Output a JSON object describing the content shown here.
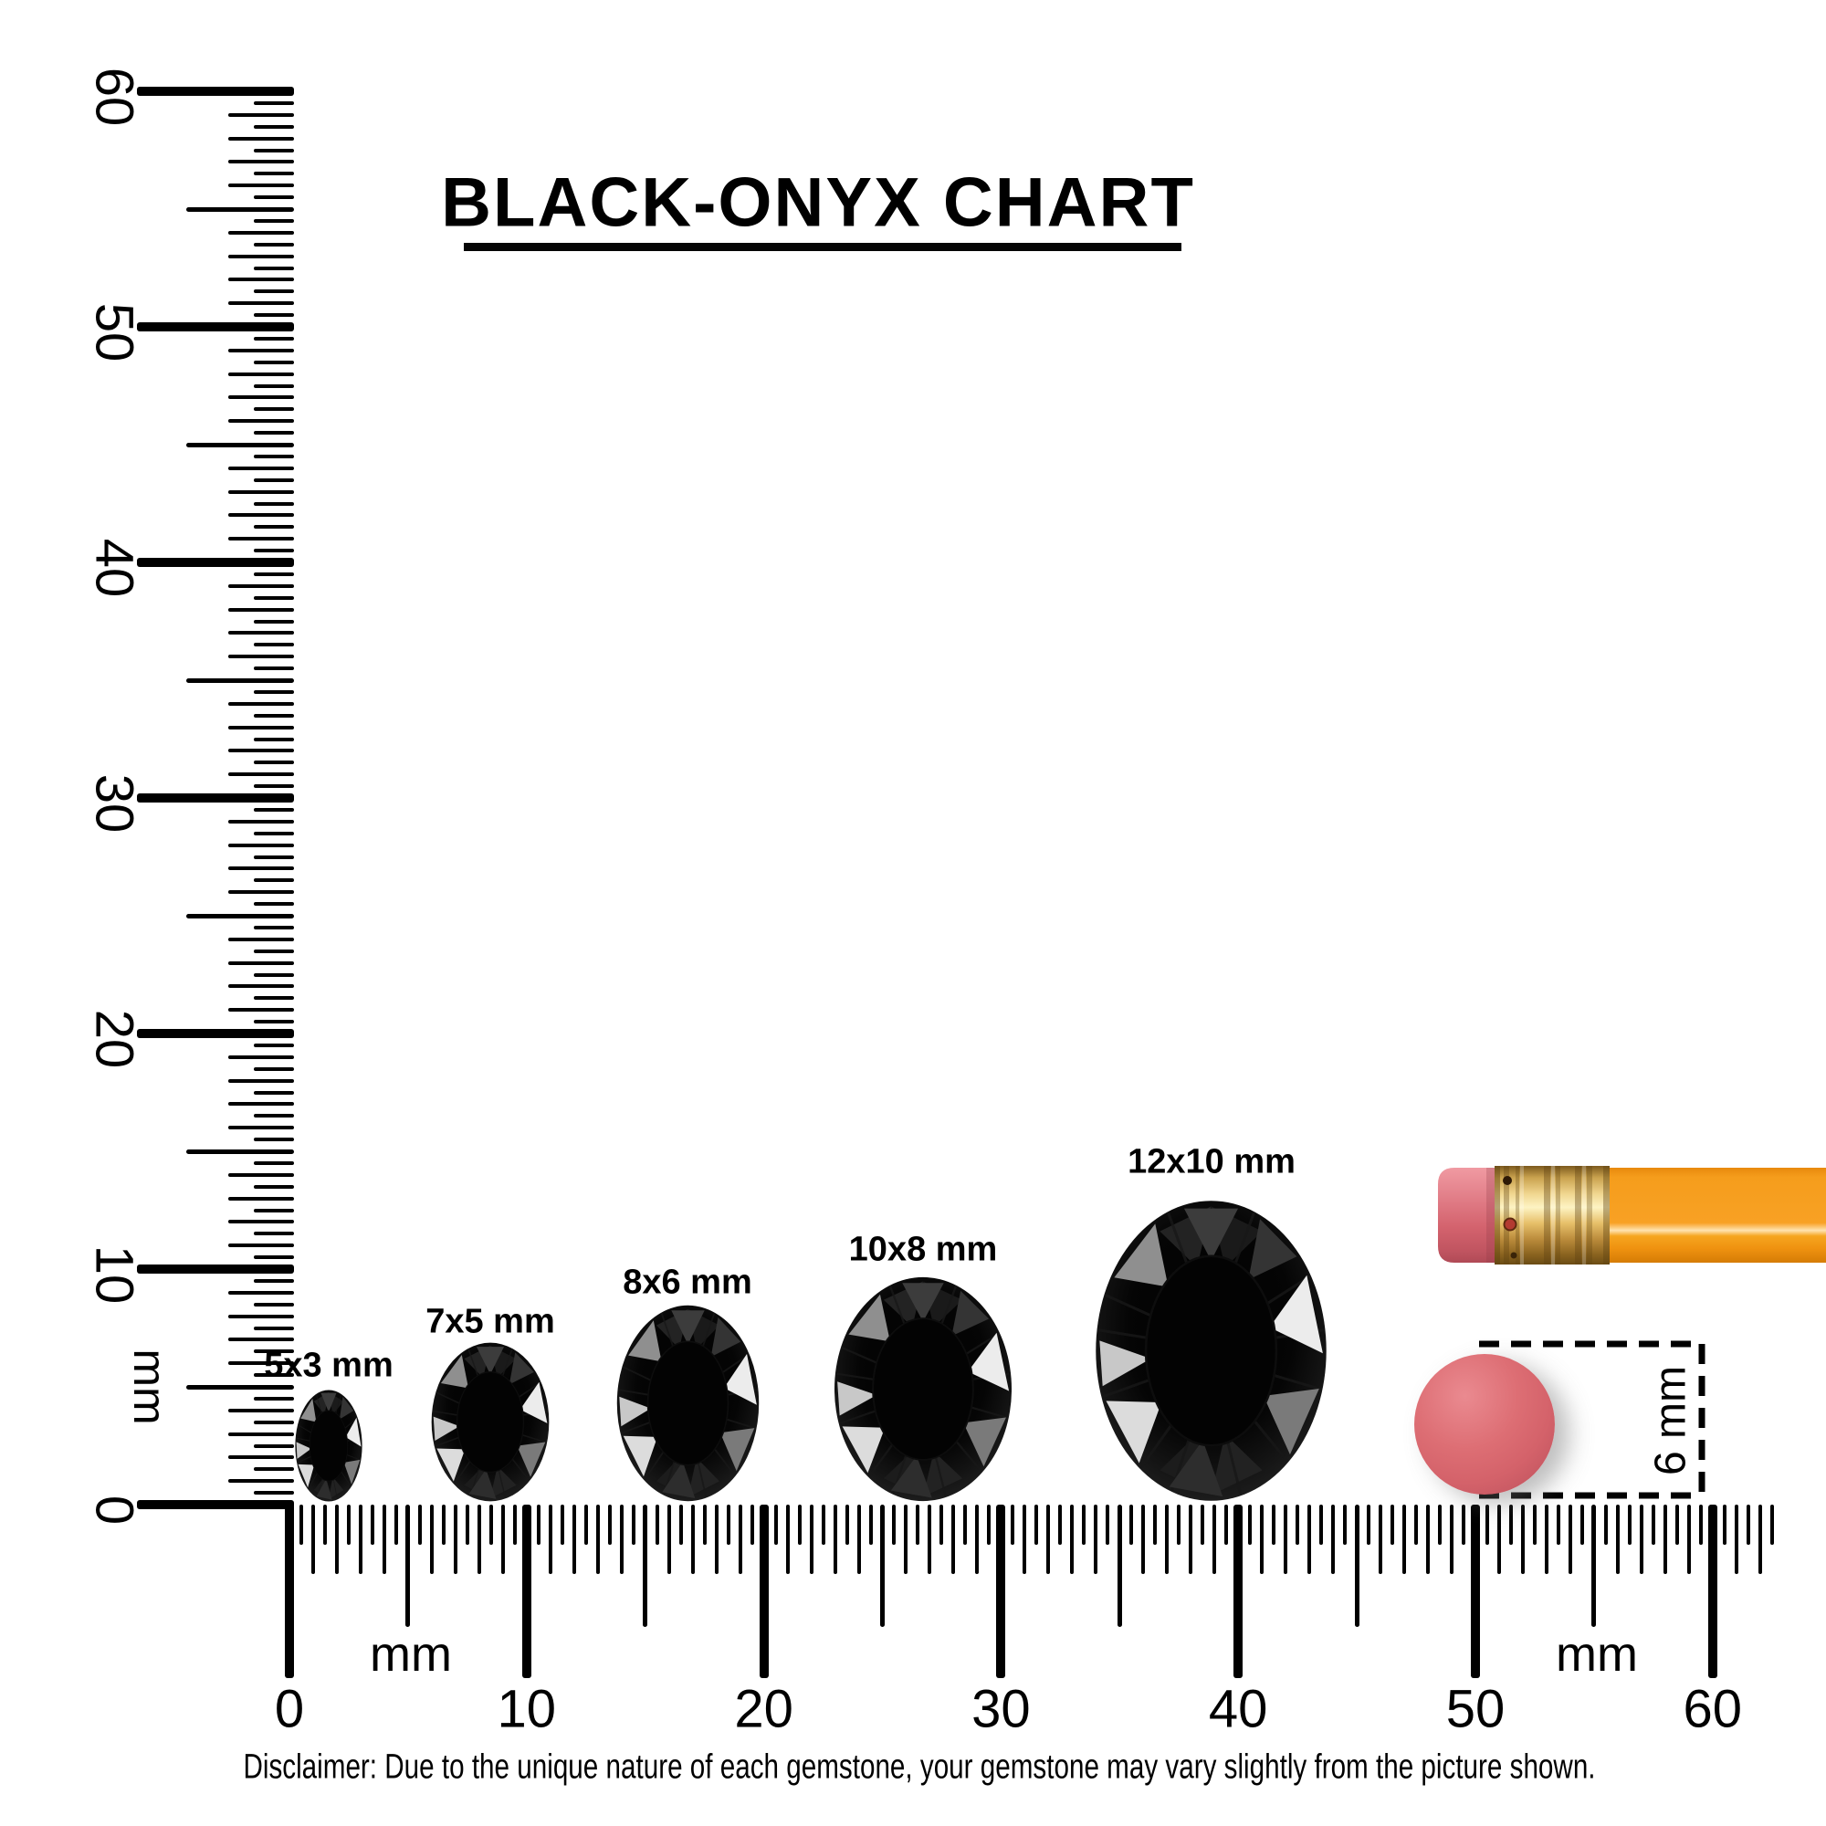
{
  "title": {
    "text": "BLACK-ONYX CHART"
  },
  "rulers": {
    "vertical": {
      "unit": "mm",
      "tick_labels": [
        "0",
        "10",
        "20",
        "30",
        "40",
        "50",
        "60"
      ]
    },
    "horizontal": {
      "unit_left": "mm",
      "unit_right": "mm",
      "tick_labels": [
        "0",
        "10",
        "20",
        "30",
        "40",
        "50",
        "60"
      ]
    }
  },
  "gems": [
    {
      "label": "5x3 mm",
      "size_mm": "5x3"
    },
    {
      "label": "7x5 mm",
      "size_mm": "7x5"
    },
    {
      "label": "8x6 mm",
      "size_mm": "8x6"
    },
    {
      "label": "10x8 mm",
      "size_mm": "10x8"
    },
    {
      "label": "12x10 mm",
      "size_mm": "12x10"
    }
  ],
  "reference_objects": {
    "disc_label": "6 mm",
    "disc_color": "#d4626a",
    "pencil_body_color": "#f59d1c",
    "pencil_ferrule_color": "#d9b05e",
    "pencil_eraser_color": "#dd6e74"
  },
  "gem_color": "#0a0a0a",
  "disclaimer": "Disclaimer: Due to the unique nature of each gemstone, your gemstone may vary slightly from the picture shown."
}
